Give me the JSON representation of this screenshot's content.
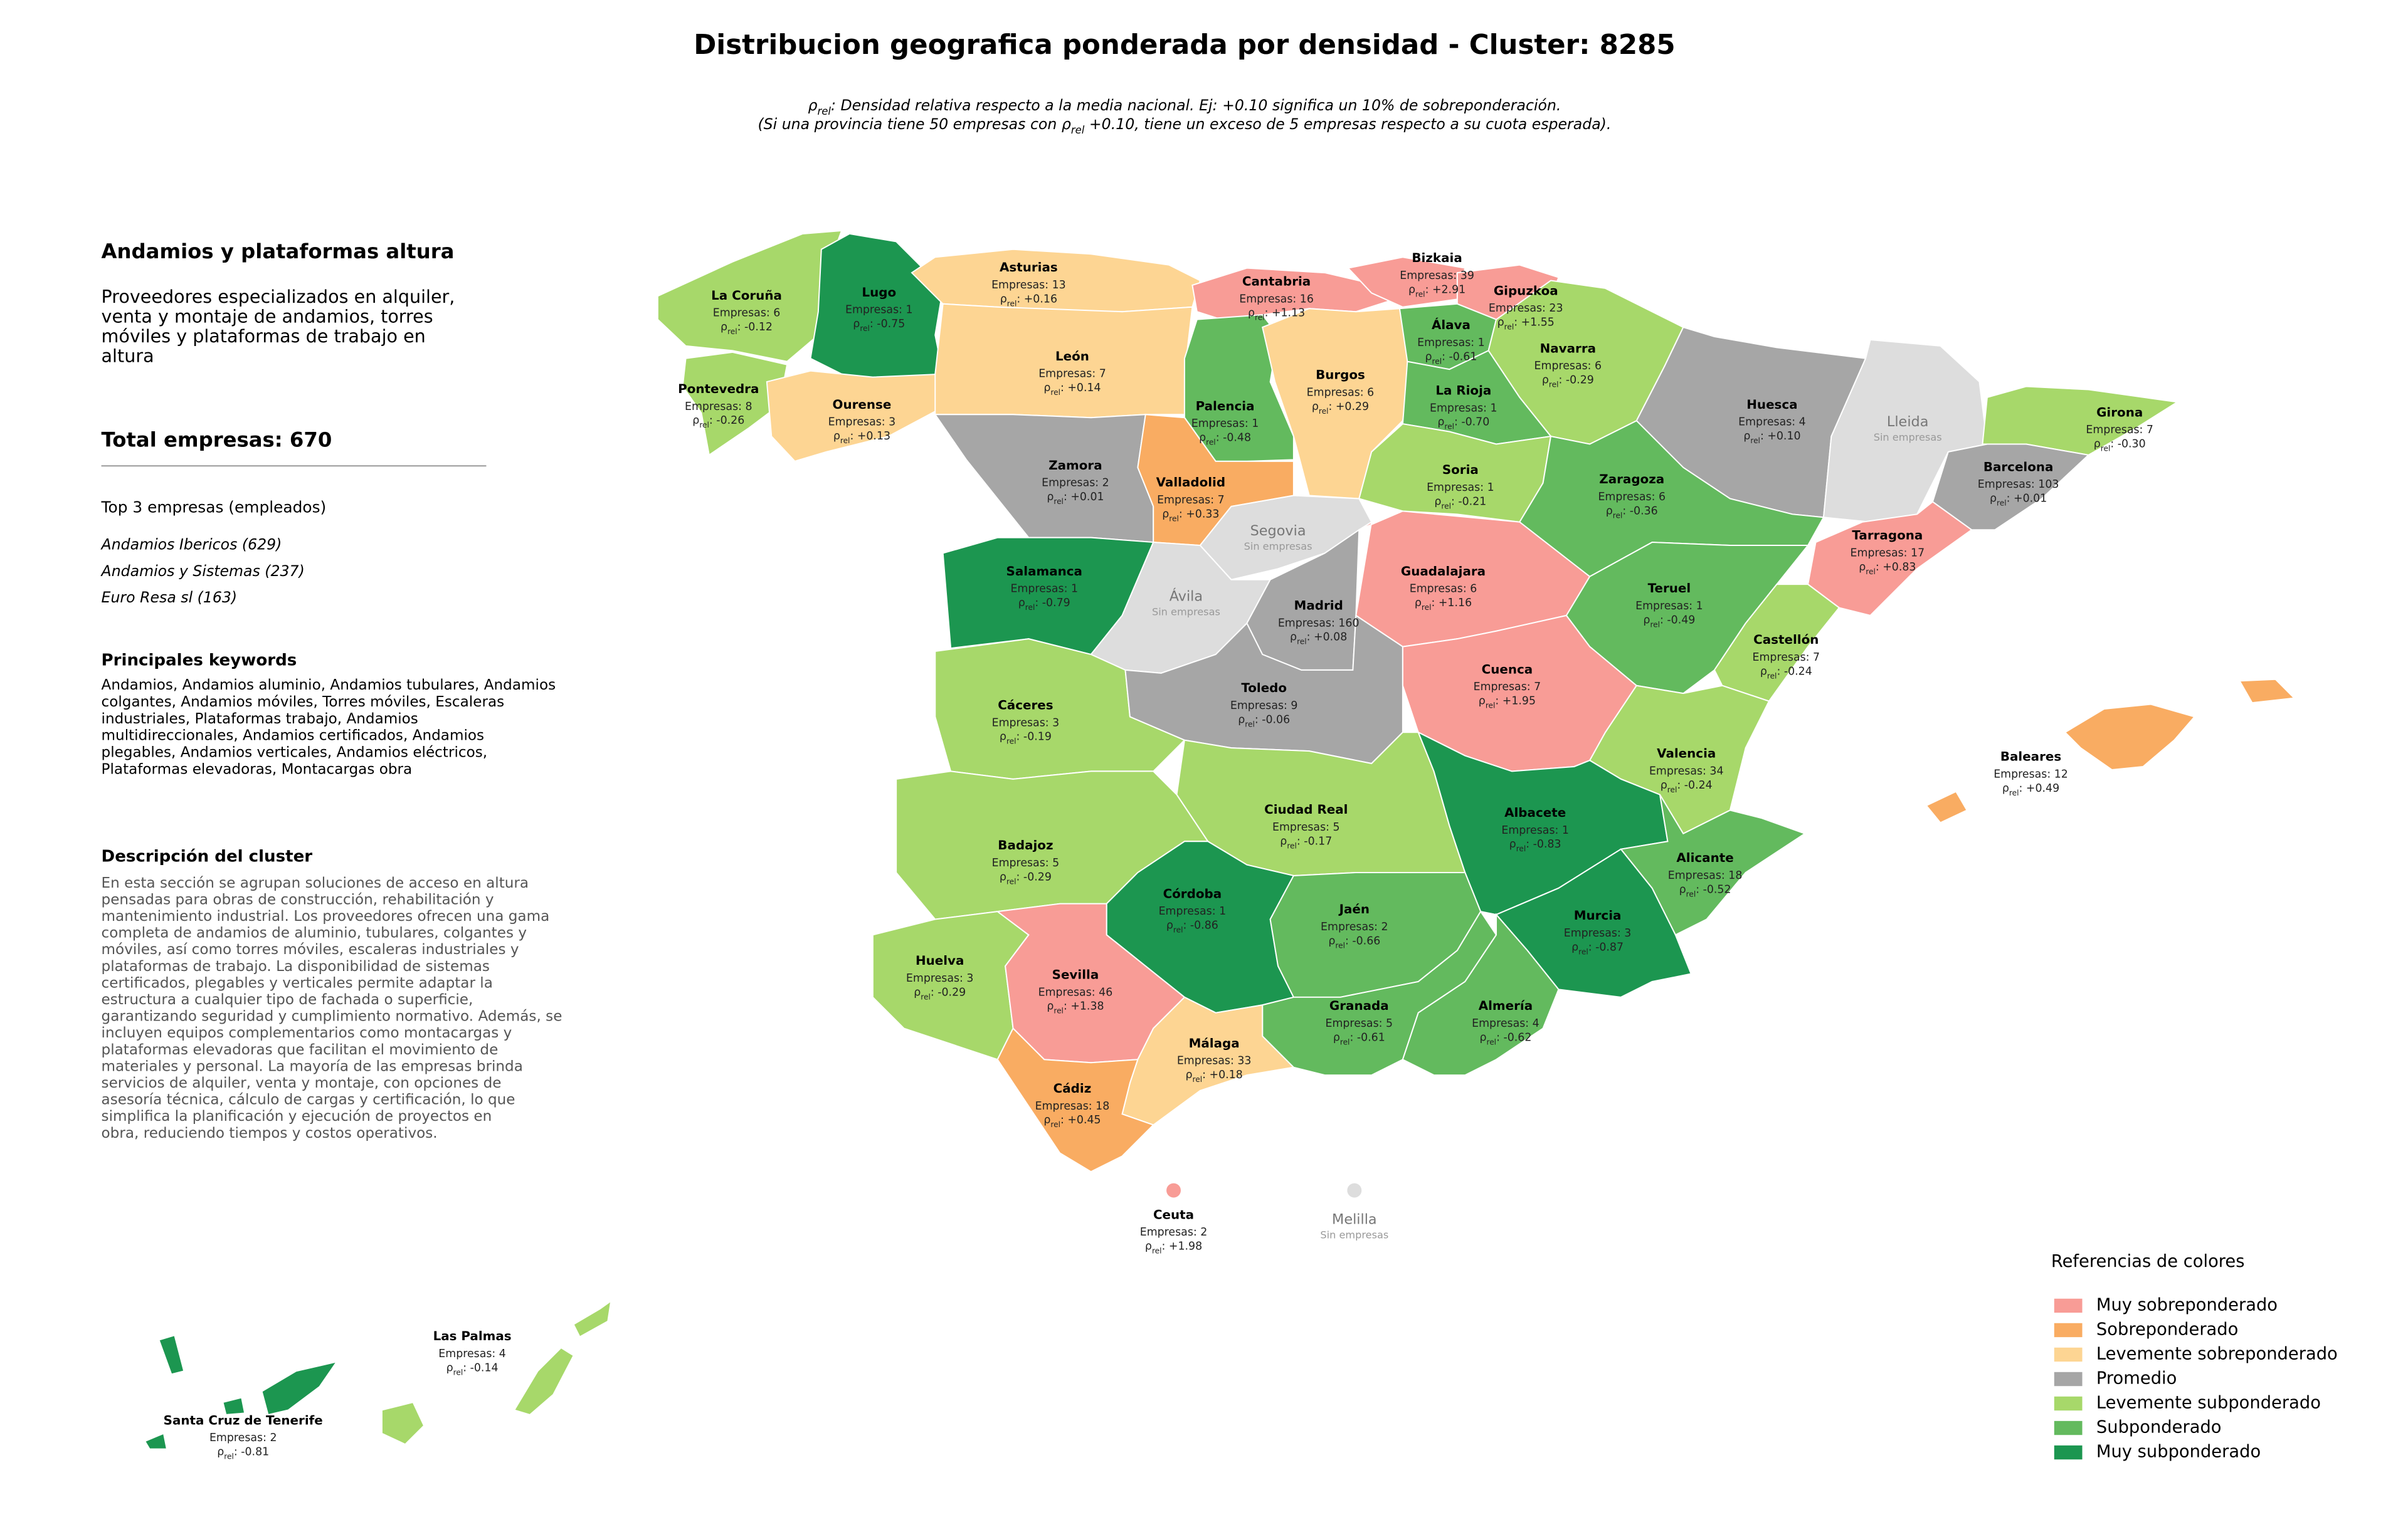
{
  "title": "Distribucion geografica ponderada por densidad - Cluster: 8285",
  "subtitle_1": {
    "symbol": "ρ",
    "sub": "rel",
    "text": ": Densidad relativa respecto a la media nacional. Ej: +0.10 significa un 10% de sobreponderación."
  },
  "subtitle_2": {
    "before": "(Si una provincia tiene 50 empresas con ",
    "symbol": "ρ",
    "sub": "rel",
    "after": " +0.10, tiene un exceso de 5 empresas respecto a su cuota esperada)."
  },
  "panel": {
    "heading": "Andamios y plataformas altura",
    "summary": [
      "Proveedores especializados en alquiler,",
      "venta y montaje de andamios, torres",
      "móviles y plataformas de trabajo en",
      "altura"
    ],
    "total": "Total empresas: 670",
    "top_title": "Top 3 empresas (empleados)",
    "top": [
      "Andamios Ibericos (629)",
      "Andamios y Sistemas (237)",
      "Euro Resa sl (163)"
    ],
    "keywords_title": "Principales keywords",
    "keywords": [
      "Andamios, Andamios aluminio, Andamios tubulares, Andamios",
      "colgantes, Andamios móviles, Torres móviles, Escaleras",
      "industriales, Plataformas trabajo, Andamios",
      "multidireccionales, Andamios certificados, Andamios",
      "plegables, Andamios verticales, Andamios eléctricos,",
      "Plataformas elevadoras, Montacargas obra"
    ],
    "description_title": "Descripción del cluster",
    "description": [
      "En esta sección se agrupan soluciones de acceso en altura",
      "pensadas para obras de construcción, rehabilitación y",
      "mantenimiento industrial. Los proveedores ofrecen una gama",
      "completa de andamios de aluminio, tubulares, colgantes y",
      "móviles, así como torres móviles, escaleras industriales y",
      "plataformas de trabajo. La disponibilidad de sistemas",
      "certificados, plegables y verticales permite adaptar la",
      "estructura a cualquier tipo de fachada o superficie,",
      "garantizando seguridad y cumplimiento normativo. Además, se",
      "incluyen equipos complementarios como montacargas y",
      "plataformas elevadoras que facilitan el movimiento de",
      "materiales y personal. La mayoría de las empresas brinda",
      "servicios de alquiler, venta y montaje, con opciones de",
      "asesoría técnica, cálculo de cargas y certificación, lo que",
      "simplifica la planificación y ejecución de proyectos en",
      "obra, reduciendo tiempos y costos operativos."
    ]
  },
  "legend": {
    "title": "Referencias de colores",
    "items": [
      {
        "label": "Muy sobreponderado",
        "color": "#f89c96"
      },
      {
        "label": "Sobreponderado",
        "color": "#f9ac62"
      },
      {
        "label": "Levemente sobreponderado",
        "color": "#fdd593"
      },
      {
        "label": "Promedio",
        "color": "#a6a6a6"
      },
      {
        "label": "Levemente subponderado",
        "color": "#a7d86a"
      },
      {
        "label": "Subponderado",
        "color": "#63ba5e"
      },
      {
        "label": "Muy subponderado",
        "color": "#1c9650"
      }
    ]
  },
  "no_data_color": "#dddddd",
  "rho_symbol": "ρ",
  "rho_sub": "rel",
  "provinces": [
    {
      "name": "La Coruña",
      "empresas": "Empresas: 6",
      "rho": ": -0.12",
      "category": "Levemente subponderado"
    },
    {
      "name": "Lugo",
      "empresas": "Empresas: 1",
      "rho": ": -0.75",
      "category": "Muy subponderado"
    },
    {
      "name": "Asturias",
      "empresas": "Empresas: 13",
      "rho": ": +0.16",
      "category": "Levemente sobreponderado"
    },
    {
      "name": "Cantabria",
      "empresas": "Empresas: 16",
      "rho": ": +1.13",
      "category": "Muy sobreponderado"
    },
    {
      "name": "Bizkaia",
      "empresas": "Empresas: 39",
      "rho": ": +2.91",
      "category": "Muy sobreponderado"
    },
    {
      "name": "Gipuzkoa",
      "empresas": "Empresas: 23",
      "rho": ": +1.55",
      "category": "Muy sobreponderado"
    },
    {
      "name": "Pontevedra",
      "empresas": "Empresas: 8",
      "rho": ": -0.26",
      "category": "Levemente subponderado"
    },
    {
      "name": "Ourense",
      "empresas": "Empresas: 3",
      "rho": ": +0.13",
      "category": "Levemente sobreponderado"
    },
    {
      "name": "León",
      "empresas": "Empresas: 7",
      "rho": ": +0.14",
      "category": "Levemente sobreponderado"
    },
    {
      "name": "Palencia",
      "empresas": "Empresas: 1",
      "rho": ": -0.48",
      "category": "Subponderado"
    },
    {
      "name": "Burgos",
      "empresas": "Empresas: 6",
      "rho": ": +0.29",
      "category": "Levemente sobreponderado"
    },
    {
      "name": "Álava",
      "empresas": "Empresas: 1",
      "rho": ": -0.61",
      "category": "Subponderado"
    },
    {
      "name": "Navarra",
      "empresas": "Empresas: 6",
      "rho": ": -0.29",
      "category": "Levemente subponderado"
    },
    {
      "name": "La Rioja",
      "empresas": "Empresas: 1",
      "rho": ": -0.70",
      "category": "Subponderado"
    },
    {
      "name": "Huesca",
      "empresas": "Empresas: 4",
      "rho": ": +0.10",
      "category": "Promedio"
    },
    {
      "name": "Lleida",
      "empresas": "Sin empresas",
      "category": null
    },
    {
      "name": "Girona",
      "empresas": "Empresas: 7",
      "rho": ": -0.30",
      "category": "Levemente subponderado"
    },
    {
      "name": "Zamora",
      "empresas": "Empresas: 2",
      "rho": ": +0.01",
      "category": "Promedio"
    },
    {
      "name": "Valladolid",
      "empresas": "Empresas: 7",
      "rho": ": +0.33",
      "category": "Sobreponderado"
    },
    {
      "name": "Soria",
      "empresas": "Empresas: 1",
      "rho": ": -0.21",
      "category": "Levemente subponderado"
    },
    {
      "name": "Zaragoza",
      "empresas": "Empresas: 6",
      "rho": ": -0.36",
      "category": "Subponderado"
    },
    {
      "name": "Barcelona",
      "empresas": "Empresas: 103",
      "rho": ": +0.01",
      "category": "Promedio"
    },
    {
      "name": "Segovia",
      "empresas": "Sin empresas",
      "category": null
    },
    {
      "name": "Tarragona",
      "empresas": "Empresas: 17",
      "rho": ": +0.83",
      "category": "Muy sobreponderado"
    },
    {
      "name": "Salamanca",
      "empresas": "Empresas: 1",
      "rho": ": -0.79",
      "category": "Muy subponderado"
    },
    {
      "name": "Ávila",
      "empresas": "Sin empresas",
      "category": null
    },
    {
      "name": "Guadalajara",
      "empresas": "Empresas: 6",
      "rho": ": +1.16",
      "category": "Muy sobreponderado"
    },
    {
      "name": "Madrid",
      "empresas": "Empresas: 160",
      "rho": ": +0.08",
      "category": "Promedio"
    },
    {
      "name": "Teruel",
      "empresas": "Empresas: 1",
      "rho": ": -0.49",
      "category": "Subponderado"
    },
    {
      "name": "Castellón",
      "empresas": "Empresas: 7",
      "rho": ": -0.24",
      "category": "Levemente subponderado"
    },
    {
      "name": "Cáceres",
      "empresas": "Empresas: 3",
      "rho": ": -0.19",
      "category": "Levemente subponderado"
    },
    {
      "name": "Toledo",
      "empresas": "Empresas: 9",
      "rho": ": -0.06",
      "category": "Promedio"
    },
    {
      "name": "Cuenca",
      "empresas": "Empresas: 7",
      "rho": ": +1.95",
      "category": "Muy sobreponderado"
    },
    {
      "name": "Valencia",
      "empresas": "Empresas: 34",
      "rho": ": -0.24",
      "category": "Levemente subponderado"
    },
    {
      "name": "Baleares",
      "empresas": "Empresas: 12",
      "rho": ": +0.49",
      "category": "Sobreponderado"
    },
    {
      "name": "Ciudad Real",
      "empresas": "Empresas: 5",
      "rho": ": -0.17",
      "category": "Levemente subponderado"
    },
    {
      "name": "Albacete",
      "empresas": "Empresas: 1",
      "rho": ": -0.83",
      "category": "Muy subponderado"
    },
    {
      "name": "Badajoz",
      "empresas": "Empresas: 5",
      "rho": ": -0.29",
      "category": "Levemente subponderado"
    },
    {
      "name": "Alicante",
      "empresas": "Empresas: 18",
      "rho": ": -0.52",
      "category": "Subponderado"
    },
    {
      "name": "Córdoba",
      "empresas": "Empresas: 1",
      "rho": ": -0.86",
      "category": "Muy subponderado"
    },
    {
      "name": "Jaén",
      "empresas": "Empresas: 2",
      "rho": ": -0.66",
      "category": "Subponderado"
    },
    {
      "name": "Murcia",
      "empresas": "Empresas: 3",
      "rho": ": -0.87",
      "category": "Muy subponderado"
    },
    {
      "name": "Huelva",
      "empresas": "Empresas: 3",
      "rho": ": -0.29",
      "category": "Levemente subponderado"
    },
    {
      "name": "Sevilla",
      "empresas": "Empresas: 46",
      "rho": ": +1.38",
      "category": "Muy sobreponderado"
    },
    {
      "name": "Granada",
      "empresas": "Empresas: 5",
      "rho": ": -0.61",
      "category": "Subponderado"
    },
    {
      "name": "Almería",
      "empresas": "Empresas: 4",
      "rho": ": -0.62",
      "category": "Subponderado"
    },
    {
      "name": "Málaga",
      "empresas": "Empresas: 33",
      "rho": ": +0.18",
      "category": "Levemente sobreponderado"
    },
    {
      "name": "Cádiz",
      "empresas": "Empresas: 18",
      "rho": ": +0.45",
      "category": "Sobreponderado"
    },
    {
      "name": "Ceuta",
      "empresas": "Empresas: 2",
      "rho": ": +1.98",
      "category": "Muy sobreponderado"
    },
    {
      "name": "Melilla",
      "empresas": "Sin empresas",
      "category": null
    },
    {
      "name": "Las Palmas",
      "empresas": "Empresas: 4",
      "rho": ": -0.14",
      "category": "Levemente subponderado"
    },
    {
      "name": "Santa Cruz de Tenerife",
      "empresas": "Empresas: 2",
      "rho": ": -0.81",
      "category": "Muy subponderado"
    }
  ]
}
